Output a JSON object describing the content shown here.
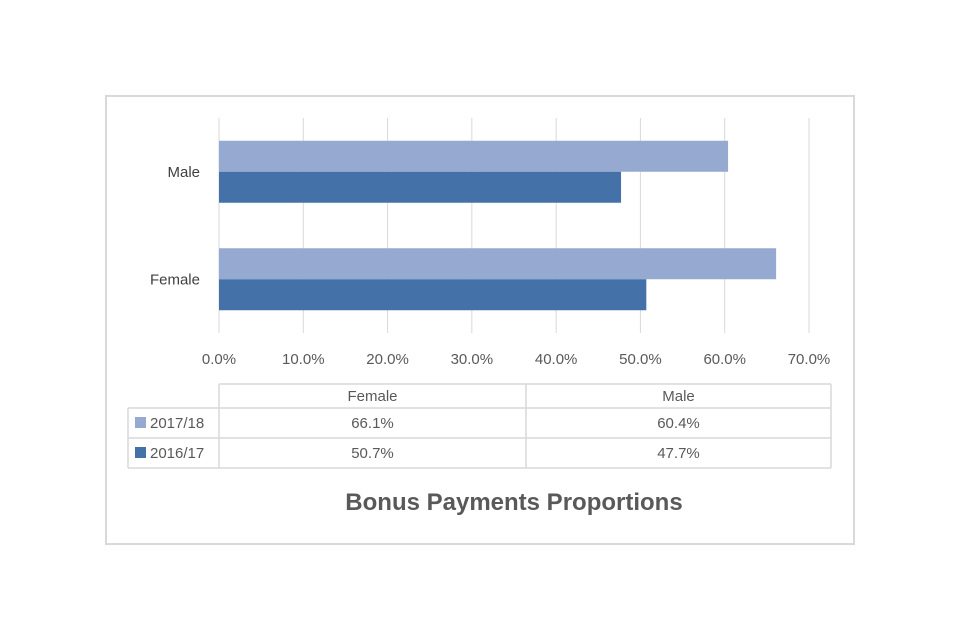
{
  "chart_data": {
    "type": "bar",
    "orientation": "horizontal",
    "title": "Bonus Payments Proportions",
    "categories": [
      "Female",
      "Male"
    ],
    "series": [
      {
        "name": "2017/18",
        "values": [
          66.1,
          60.4
        ],
        "labels": [
          "66.1%",
          "60.4%"
        ],
        "color": "#95a9d1"
      },
      {
        "name": "2016/17",
        "values": [
          50.7,
          47.7
        ],
        "labels": [
          "50.7%",
          "47.7%"
        ],
        "color": "#4472a8"
      }
    ],
    "xlim": [
      0,
      70
    ],
    "xticks": [
      "0.0%",
      "10.0%",
      "20.0%",
      "30.0%",
      "40.0%",
      "50.0%",
      "60.0%",
      "70.0%"
    ],
    "grid": true,
    "legend": "data-table"
  }
}
